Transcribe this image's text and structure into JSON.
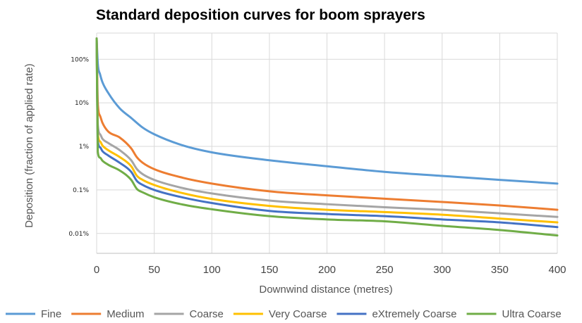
{
  "chart_data": {
    "type": "line",
    "title": "Standard deposition curves for boom sprayers",
    "xlabel": "Downwind distance (metres)",
    "ylabel": "Deposition (fraction of applied rate)",
    "x_scale": "linear",
    "y_scale": "log",
    "xlim": [
      0,
      400
    ],
    "ylim": [
      0.0035,
      400
    ],
    "x_ticks": [
      "0",
      "50",
      "100",
      "150",
      "200",
      "250",
      "300",
      "350",
      "400"
    ],
    "y_ticks": [
      {
        "label": "100%",
        "value": 100
      },
      {
        "label": "10%",
        "value": 10
      },
      {
        "label": "1%",
        "value": 1
      },
      {
        "label": "0.1%",
        "value": 0.1
      },
      {
        "label": "0.01%",
        "value": 0.01
      }
    ],
    "grid": true,
    "legend_position": "bottom",
    "series": [
      {
        "name": "Fine",
        "color": "#5b9bd5",
        "x": [
          0,
          1,
          3,
          5,
          10,
          20,
          30,
          40,
          50,
          75,
          100,
          150,
          200,
          250,
          300,
          350,
          400
        ],
        "y": [
          300,
          80,
          45,
          30,
          17,
          7.5,
          4.5,
          2.7,
          1.9,
          1.05,
          0.73,
          0.48,
          0.35,
          0.26,
          0.21,
          0.17,
          0.14
        ]
      },
      {
        "name": "Medium",
        "color": "#ed7d31",
        "x": [
          0,
          1,
          3,
          5,
          10,
          20,
          30,
          35,
          40,
          50,
          75,
          100,
          150,
          200,
          250,
          300,
          350,
          400
        ],
        "y": [
          300,
          10,
          5,
          3.5,
          2.2,
          1.6,
          0.9,
          0.56,
          0.42,
          0.3,
          0.19,
          0.14,
          0.093,
          0.075,
          0.063,
          0.053,
          0.044,
          0.035
        ]
      },
      {
        "name": "Coarse",
        "color": "#a5a5a5",
        "x": [
          0,
          1,
          3,
          5,
          10,
          20,
          30,
          35,
          40,
          50,
          75,
          100,
          150,
          200,
          250,
          300,
          350,
          400
        ],
        "y": [
          300,
          3.2,
          1.9,
          1.5,
          1.2,
          0.82,
          0.48,
          0.3,
          0.23,
          0.17,
          0.11,
          0.083,
          0.057,
          0.047,
          0.04,
          0.035,
          0.029,
          0.024
        ]
      },
      {
        "name": "Very Coarse",
        "color": "#ffc000",
        "x": [
          0,
          1,
          3,
          5,
          10,
          20,
          30,
          35,
          40,
          50,
          75,
          100,
          150,
          200,
          250,
          300,
          350,
          400
        ],
        "y": [
          300,
          2.0,
          1.3,
          1.05,
          0.82,
          0.57,
          0.35,
          0.21,
          0.17,
          0.13,
          0.084,
          0.062,
          0.043,
          0.035,
          0.031,
          0.027,
          0.022,
          0.018
        ]
      },
      {
        "name": "eXtremely Coarse",
        "color": "#4472c4",
        "x": [
          0,
          1,
          3,
          5,
          10,
          20,
          30,
          35,
          40,
          50,
          75,
          100,
          150,
          200,
          250,
          300,
          350,
          400
        ],
        "y": [
          300,
          1.4,
          0.95,
          0.78,
          0.62,
          0.42,
          0.26,
          0.16,
          0.13,
          0.1,
          0.067,
          0.05,
          0.033,
          0.028,
          0.025,
          0.021,
          0.018,
          0.014
        ]
      },
      {
        "name": "Ultra Coarse",
        "color": "#70ad47",
        "x": [
          0,
          1,
          3,
          5,
          10,
          20,
          30,
          35,
          40,
          50,
          75,
          100,
          150,
          200,
          250,
          300,
          350,
          400
        ],
        "y": [
          300,
          0.75,
          0.55,
          0.47,
          0.38,
          0.28,
          0.17,
          0.105,
          0.088,
          0.068,
          0.046,
          0.036,
          0.025,
          0.021,
          0.019,
          0.015,
          0.012,
          0.009
        ]
      }
    ]
  }
}
